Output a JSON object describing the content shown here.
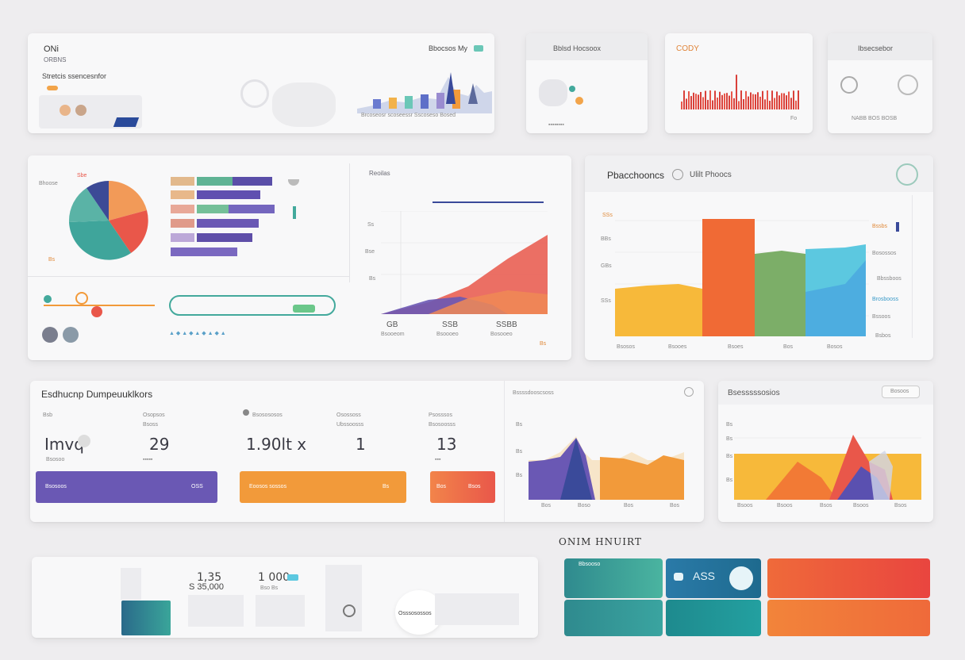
{
  "colors": {
    "purple": "#6a58b4",
    "orange": "#f29a3a",
    "red": "#e9574a",
    "teal": "#43a99c",
    "green": "#7cae68",
    "cyan": "#5cc8e0",
    "navy": "#3a4a9a",
    "yellow": "#f7b93a"
  },
  "top_banner": {
    "title": "ONi",
    "subtitle": "ORBNS",
    "caption": "Stretcis ssencesnfor",
    "tag": "Bbocsos My",
    "legend": "Brcoseosr scoseessr Sscoseso Bosed"
  },
  "mini_card_1": {
    "title": "Bblsd Hocsoox"
  },
  "mini_card_2": {
    "title": "CODY",
    "footer": "Fo"
  },
  "mini_card_3": {
    "title": "Ibsecsebor",
    "footer": "NABB BOS BOSB"
  },
  "analytics_panel": {
    "pie_label_top": "Sbe",
    "pie_label_left": "Bhoose",
    "pie_label_bottom": "Bs",
    "area_title": "Reoilas",
    "area_side_a": "Ss",
    "area_side_b": "Bse",
    "area_side_c": "Bs",
    "stats": [
      {
        "value": "GB",
        "label": "Bsooeom"
      },
      {
        "value": "SSB",
        "label": "Bsoooeo"
      },
      {
        "value": "SSBB",
        "label": "Bosooeo"
      }
    ],
    "corner": "Bs"
  },
  "performance_panel": {
    "title": "Pbacchooncs",
    "subtitle": "Ulilt Phoocs",
    "y_ticks": [
      "SSs",
      "BBs",
      "GBs",
      "SSs"
    ],
    "x_ticks": [
      "Bsosos",
      "Bsooes",
      "Bsoes",
      "Bos",
      "Bosos"
    ],
    "legend": [
      "Bssbs",
      "Bosossos",
      "Bbssboos",
      "Brosbooss",
      "Bssoos",
      "Bsbos"
    ]
  },
  "metrics_panel": {
    "title": "Esdhucnp Dumpeuuklkors",
    "metrics": [
      {
        "label": "Bsb",
        "sub": "Bsosoo",
        "value": "Imvq"
      },
      {
        "label": "Osopsos",
        "sub": "Bsoss",
        "value": "29"
      },
      {
        "label": "Bsosososos",
        "sub": "",
        "value": "1.90lt  x"
      },
      {
        "label": "Osossoss",
        "sub": "Ubssoosss",
        "value": "1"
      },
      {
        "label": "Psosssos",
        "sub": "Bsosoosss",
        "value": "13"
      }
    ],
    "bars": [
      {
        "label": "Bsosoos",
        "value": "OSS"
      },
      {
        "label": "Eoosos sossos",
        "value": "Bs"
      },
      {
        "label": "Bos",
        "value": "Bsos"
      }
    ],
    "chart_title": "Bssssdooscsoss",
    "chart_x": [
      "Bos",
      "Boso",
      "Bos",
      "Bos"
    ]
  },
  "mountain_panel": {
    "title": "Bsesssssosios",
    "button": "Bosoos",
    "x_ticks": [
      "Bsoos",
      "Bsoos",
      "Bsos",
      "Bsoos",
      "Bsos"
    ]
  },
  "bottom_strip": {
    "value_a": "1,35",
    "value_b": "1 000",
    "value_c": "S 35,000",
    "sub_c": "Bso Bs",
    "chip": "Osssosossos"
  },
  "bottom_right": {
    "heading": "ONIM HNUIRT",
    "tile_label": "Bbsooso",
    "tile_value": "ASS"
  }
}
